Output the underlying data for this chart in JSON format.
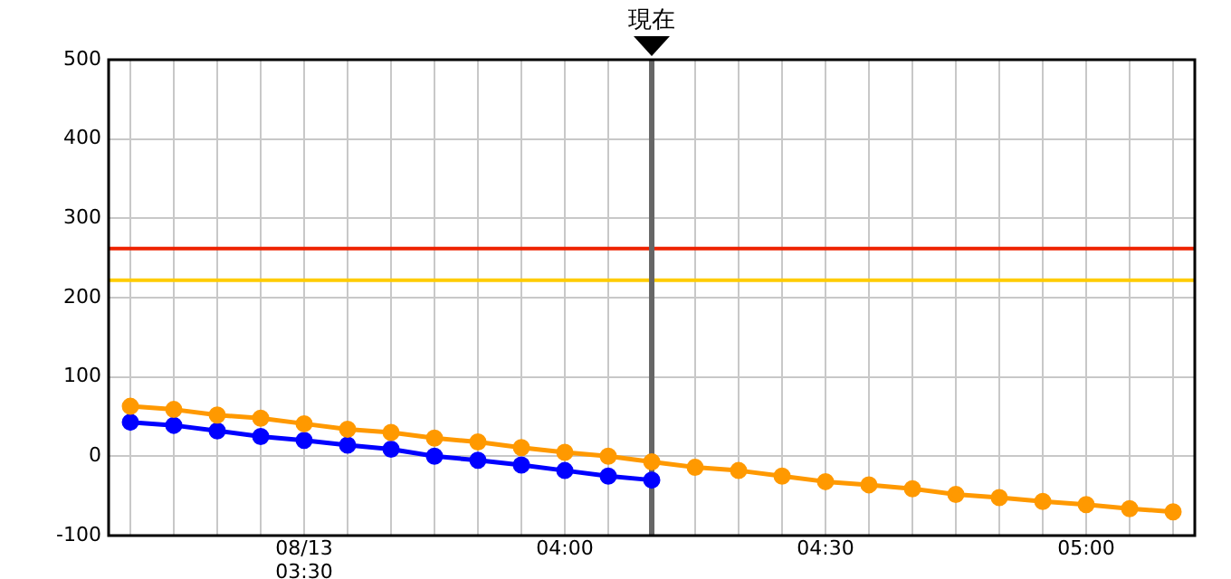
{
  "chart_data": {
    "type": "line",
    "x": [
      3.1667,
      3.25,
      3.3333,
      3.4167,
      3.5,
      3.5833,
      3.6667,
      3.75,
      3.8333,
      3.9167,
      4,
      4.0833,
      4.1667,
      4.25,
      4.3333,
      4.4167,
      4.5,
      4.5833,
      4.6667,
      4.75,
      4.8333,
      4.9167,
      5,
      5.0833,
      5.1667
    ],
    "series": [
      {
        "color": "#ff9900",
        "values": [
          63,
          59,
          52,
          48,
          41,
          34,
          30,
          23,
          18,
          11,
          5,
          0,
          -7,
          -14,
          -18,
          -25,
          -32,
          -36,
          -41,
          -48,
          -52,
          -57,
          -61,
          -66,
          -70
        ]
      },
      {
        "color": "#0000ff",
        "values": [
          43,
          39,
          32,
          25,
          20,
          14,
          9,
          0,
          -5,
          -11,
          -18,
          -25,
          -30,
          null,
          null,
          null,
          null,
          null,
          null,
          null,
          null,
          null,
          null,
          null,
          null
        ]
      }
    ],
    "xlim": [
      3.125,
      5.2083
    ],
    "xticks": [
      {
        "value": 3.1667,
        "label": null
      },
      {
        "value": 3.25,
        "label": null
      },
      {
        "value": 3.3333,
        "label": null
      },
      {
        "value": 3.4167,
        "label": null
      },
      {
        "value": 3.5,
        "label": "08/13\n03:30"
      },
      {
        "value": 3.5833,
        "label": null
      },
      {
        "value": 3.6667,
        "label": null
      },
      {
        "value": 3.75,
        "label": null
      },
      {
        "value": 3.8333,
        "label": null
      },
      {
        "value": 3.9167,
        "label": null
      },
      {
        "value": 4,
        "label": "04:00"
      },
      {
        "value": 4.0833,
        "label": null
      },
      {
        "value": 4.1667,
        "label": null
      },
      {
        "value": 4.25,
        "label": null
      },
      {
        "value": 4.3333,
        "label": null
      },
      {
        "value": 4.4167,
        "label": null
      },
      {
        "value": 4.5,
        "label": "04:30"
      },
      {
        "value": 4.5833,
        "label": null
      },
      {
        "value": 4.6667,
        "label": null
      },
      {
        "value": 4.75,
        "label": null
      },
      {
        "value": 4.8333,
        "label": null
      },
      {
        "value": 4.9167,
        "label": null
      },
      {
        "value": 5,
        "label": "05:00"
      },
      {
        "value": 5.0833,
        "label": null
      },
      {
        "value": 5.1667,
        "label": null
      }
    ],
    "ylim": [
      -100,
      500
    ],
    "yticks": [
      -100,
      0,
      100,
      200,
      300,
      400,
      500
    ],
    "ref_lines": [
      {
        "axis": "y",
        "value": 262,
        "color": "#ee2200"
      },
      {
        "axis": "y",
        "value": 222,
        "color": "#ffcc00"
      },
      {
        "axis": "x",
        "value": 4.1667,
        "label": "現在",
        "color": "#666666"
      }
    ],
    "grid": true,
    "legend": false,
    "marker": "circle",
    "line_style": "solid"
  }
}
